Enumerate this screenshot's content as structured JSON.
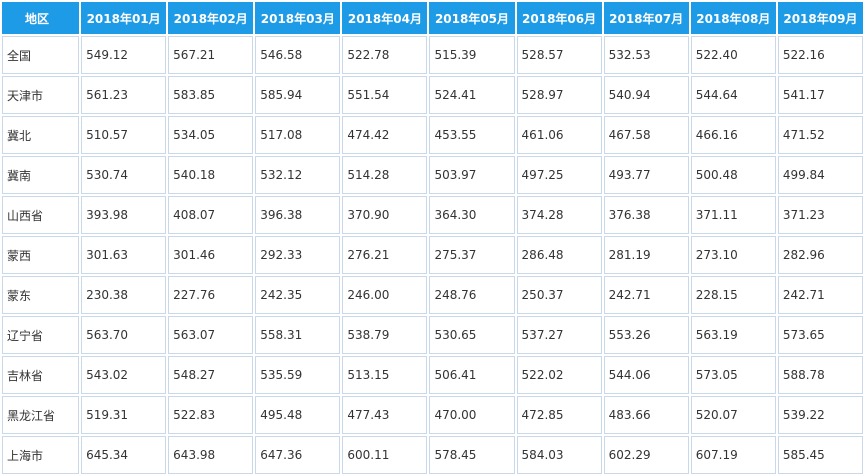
{
  "table": {
    "headers": [
      "地区",
      "2018年01月",
      "2018年02月",
      "2018年03月",
      "2018年04月",
      "2018年05月",
      "2018年06月",
      "2018年07月",
      "2018年08月",
      "2018年09月"
    ],
    "rows": [
      [
        "全国",
        "549.12",
        "567.21",
        "546.58",
        "522.78",
        "515.39",
        "528.57",
        "532.53",
        "522.40",
        "522.16"
      ],
      [
        "天津市",
        "561.23",
        "583.85",
        "585.94",
        "551.54",
        "524.41",
        "528.97",
        "540.94",
        "544.64",
        "541.17"
      ],
      [
        "冀北",
        "510.57",
        "534.05",
        "517.08",
        "474.42",
        "453.55",
        "461.06",
        "467.58",
        "466.16",
        "471.52"
      ],
      [
        "冀南",
        "530.74",
        "540.18",
        "532.12",
        "514.28",
        "503.97",
        "497.25",
        "493.77",
        "500.48",
        "499.84"
      ],
      [
        "山西省",
        "393.98",
        "408.07",
        "396.38",
        "370.90",
        "364.30",
        "374.28",
        "376.38",
        "371.11",
        "371.23"
      ],
      [
        "蒙西",
        "301.63",
        "301.46",
        "292.33",
        "276.21",
        "275.37",
        "286.48",
        "281.19",
        "273.10",
        "282.96"
      ],
      [
        "蒙东",
        "230.38",
        "227.76",
        "242.35",
        "246.00",
        "248.76",
        "250.37",
        "242.71",
        "228.15",
        "242.71"
      ],
      [
        "辽宁省",
        "563.70",
        "563.07",
        "558.31",
        "538.79",
        "530.65",
        "537.27",
        "553.26",
        "563.19",
        "573.65"
      ],
      [
        "吉林省",
        "543.02",
        "548.27",
        "535.59",
        "513.15",
        "506.41",
        "522.02",
        "544.06",
        "573.05",
        "588.78"
      ],
      [
        "黑龙江省",
        "519.31",
        "522.83",
        "495.48",
        "477.43",
        "470.00",
        "472.85",
        "483.66",
        "520.07",
        "539.22"
      ],
      [
        "上海市",
        "645.34",
        "643.98",
        "647.36",
        "600.11",
        "578.45",
        "584.03",
        "602.29",
        "607.19",
        "585.45"
      ]
    ]
  }
}
